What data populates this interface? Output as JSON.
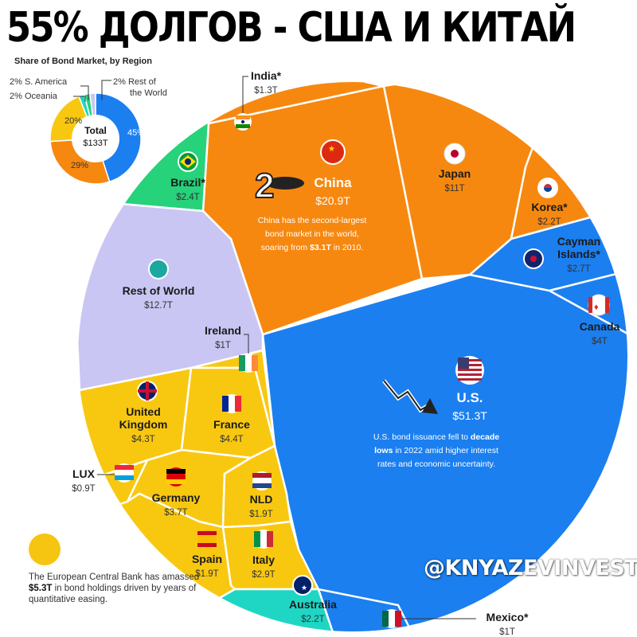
{
  "headline": "55% ДОЛГОВ - США И КИТАЙ",
  "watermark": "@KNYAZEVINVEST",
  "colors": {
    "americas_north": "#1b7ff0",
    "asia": "#f7880f",
    "europe": "#f8c811",
    "rest_of_world": "#c9c6f3",
    "s_america": "#26d27a",
    "oceania": "#1fd6c4"
  },
  "chart_data": [
    {
      "type": "pie",
      "title": "Share of Bond Market, by Region",
      "center_label": "Total",
      "center_value": "$133T",
      "slices": [
        {
          "label": "45%",
          "value": 45,
          "color": "#1b7ff0"
        },
        {
          "label": "29%",
          "value": 29,
          "color": "#f7880f"
        },
        {
          "label": "20%",
          "value": 20,
          "color": "#f8c811"
        },
        {
          "label": "2% Oceania",
          "value": 2,
          "color": "#1fd6c4"
        },
        {
          "label": "2% S. America",
          "value": 2,
          "color": "#26d27a"
        },
        {
          "label": "2% Rest of the World",
          "value": 2,
          "color": "#c9c6f3"
        }
      ]
    },
    {
      "type": "voronoi-treemap",
      "unit": "trillion USD",
      "cells": [
        {
          "name": "U.S.",
          "value": 51.3,
          "value_label": "$51.3T",
          "region": "americas_north",
          "note": "U.S. bond issuance fell to decade lows in 2022 amid higher interest rates and economic uncertainty."
        },
        {
          "name": "China",
          "value": 20.9,
          "value_label": "$20.9T",
          "region": "asia",
          "note": "China has the second-largest bond market in the world, soaring from $3.1T in 2010."
        },
        {
          "name": "Rest of World",
          "value": 12.7,
          "value_label": "$12.7T",
          "region": "rest_of_world"
        },
        {
          "name": "Japan",
          "value": 11,
          "value_label": "$11T",
          "region": "asia"
        },
        {
          "name": "France",
          "value": 4.4,
          "value_label": "$4.4T",
          "region": "europe"
        },
        {
          "name": "United Kingdom",
          "value": 4.3,
          "value_label": "$4.3T",
          "region": "europe"
        },
        {
          "name": "Canada",
          "value": 4,
          "value_label": "$4T",
          "region": "americas_north"
        },
        {
          "name": "Germany",
          "value": 3.7,
          "value_label": "$3.7T",
          "region": "europe"
        },
        {
          "name": "Italy",
          "value": 2.9,
          "value_label": "$2.9T",
          "region": "europe"
        },
        {
          "name": "Cayman Islands*",
          "value": 2.7,
          "value_label": "$2.7T",
          "region": "americas_north"
        },
        {
          "name": "Brazil*",
          "value": 2.4,
          "value_label": "$2.4T",
          "region": "s_america"
        },
        {
          "name": "Korea*",
          "value": 2.2,
          "value_label": "$2.2T",
          "region": "asia"
        },
        {
          "name": "Australia",
          "value": 2.2,
          "value_label": "$2.2T",
          "region": "oceania"
        },
        {
          "name": "Spain",
          "value": 1.9,
          "value_label": "$1.9T",
          "region": "europe"
        },
        {
          "name": "NLD",
          "value": 1.9,
          "value_label": "$1.9T",
          "region": "europe"
        },
        {
          "name": "India*",
          "value": 1.3,
          "value_label": "$1.3T",
          "region": "asia"
        },
        {
          "name": "Ireland",
          "value": 1,
          "value_label": "$1T",
          "region": "europe"
        },
        {
          "name": "Mexico*",
          "value": 1,
          "value_label": "$1T",
          "region": "americas_north"
        },
        {
          "name": "LUX",
          "value": 0.9,
          "value_label": "$0.9T",
          "region": "europe"
        }
      ]
    }
  ],
  "ecb_note": {
    "before": "The European Central Bank has amassed ",
    "bold": "$5.3T",
    "after": " in bond holdings driven by years of quantitative easing."
  }
}
